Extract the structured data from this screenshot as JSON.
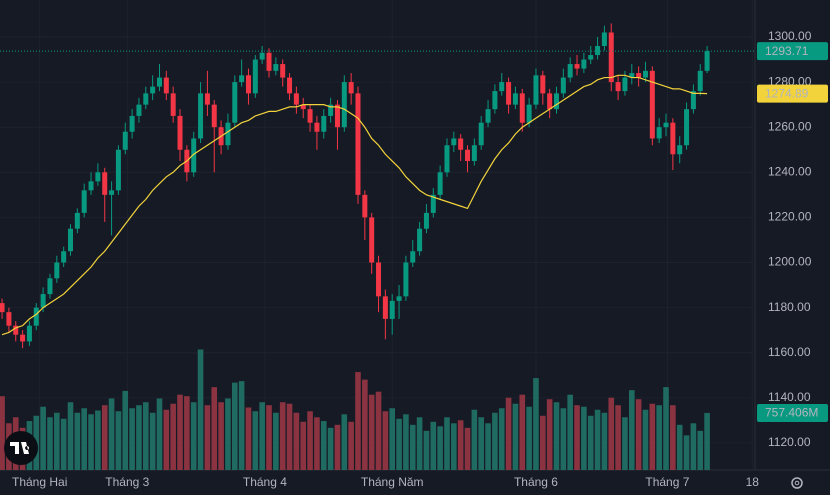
{
  "chart_data": {
    "type": "candlestick",
    "open": [
      1182,
      1178,
      1172,
      1168,
      1165,
      1172,
      1180,
      1186,
      1193,
      1200,
      1205,
      1215,
      1222,
      1232,
      1236,
      1240,
      1230,
      1232,
      1250,
      1258,
      1265,
      1270,
      1275,
      1278,
      1282,
      1275,
      1265,
      1250,
      1240,
      1255,
      1275,
      1270,
      1260,
      1252,
      1262,
      1280,
      1283,
      1275,
      1290,
      1293,
      1285,
      1288,
      1282,
      1275,
      1270,
      1268,
      1262,
      1258,
      1265,
      1270,
      1260,
      1280,
      1275,
      1230,
      1220,
      1200,
      1185,
      1175,
      1183,
      1185,
      1200,
      1205,
      1215,
      1222,
      1230,
      1240,
      1252,
      1255,
      1250,
      1245,
      1252,
      1262,
      1268,
      1276,
      1280,
      1270,
      1275,
      1262,
      1270,
      1283,
      1275,
      1268,
      1275,
      1282,
      1288,
      1286,
      1290,
      1292,
      1296,
      1302,
      1280,
      1276,
      1282,
      1284,
      1282,
      1285,
      1255,
      1260,
      1262,
      1248,
      1252,
      1268,
      1276,
      1285
    ],
    "high": [
      1184,
      1180,
      1174,
      1170,
      1174,
      1182,
      1189,
      1195,
      1203,
      1207,
      1217,
      1224,
      1235,
      1240,
      1244,
      1242,
      1236,
      1252,
      1262,
      1268,
      1273,
      1278,
      1283,
      1288,
      1285,
      1278,
      1268,
      1252,
      1258,
      1280,
      1285,
      1272,
      1263,
      1266,
      1283,
      1290,
      1286,
      1292,
      1296,
      1295,
      1291,
      1290,
      1284,
      1278,
      1273,
      1270,
      1265,
      1268,
      1273,
      1272,
      1283,
      1284,
      1278,
      1232,
      1222,
      1203,
      1188,
      1186,
      1190,
      1203,
      1210,
      1218,
      1226,
      1233,
      1243,
      1255,
      1258,
      1257,
      1252,
      1255,
      1265,
      1272,
      1279,
      1284,
      1282,
      1278,
      1277,
      1273,
      1286,
      1285,
      1277,
      1278,
      1286,
      1291,
      1292,
      1293,
      1296,
      1300,
      1305,
      1306,
      1283,
      1285,
      1288,
      1287,
      1289,
      1287,
      1264,
      1266,
      1264,
      1256,
      1271,
      1279,
      1288,
      1296
    ],
    "low": [
      1175,
      1169,
      1165,
      1162,
      1163,
      1170,
      1178,
      1184,
      1191,
      1198,
      1203,
      1213,
      1220,
      1230,
      1234,
      1218,
      1212,
      1230,
      1248,
      1255,
      1262,
      1268,
      1272,
      1276,
      1272,
      1262,
      1245,
      1236,
      1238,
      1253,
      1265,
      1240,
      1248,
      1250,
      1260,
      1278,
      1270,
      1273,
      1288,
      1282,
      1283,
      1278,
      1272,
      1266,
      1264,
      1258,
      1250,
      1255,
      1262,
      1250,
      1258,
      1270,
      1226,
      1210,
      1195,
      1178,
      1166,
      1168,
      1175,
      1183,
      1198,
      1203,
      1213,
      1220,
      1228,
      1238,
      1249,
      1245,
      1240,
      1243,
      1250,
      1260,
      1266,
      1274,
      1266,
      1268,
      1258,
      1260,
      1268,
      1270,
      1264,
      1266,
      1273,
      1280,
      1283,
      1284,
      1288,
      1290,
      1294,
      1276,
      1272,
      1274,
      1279,
      1278,
      1280,
      1252,
      1253,
      1256,
      1241,
      1244,
      1250,
      1266,
      1274,
      1284
    ],
    "close": [
      1178,
      1172,
      1168,
      1165,
      1172,
      1180,
      1186,
      1193,
      1200,
      1205,
      1215,
      1222,
      1232,
      1236,
      1240,
      1230,
      1232,
      1250,
      1258,
      1265,
      1270,
      1275,
      1278,
      1282,
      1275,
      1265,
      1250,
      1240,
      1255,
      1275,
      1270,
      1260,
      1252,
      1262,
      1280,
      1283,
      1275,
      1290,
      1293,
      1285,
      1288,
      1282,
      1275,
      1270,
      1268,
      1262,
      1258,
      1265,
      1270,
      1260,
      1280,
      1275,
      1230,
      1220,
      1200,
      1185,
      1175,
      1183,
      1185,
      1200,
      1205,
      1215,
      1222,
      1230,
      1240,
      1252,
      1255,
      1250,
      1245,
      1252,
      1262,
      1268,
      1276,
      1280,
      1270,
      1275,
      1262,
      1270,
      1283,
      1275,
      1268,
      1275,
      1282,
      1288,
      1286,
      1290,
      1292,
      1296,
      1302,
      1280,
      1276,
      1282,
      1284,
      1282,
      1285,
      1255,
      1260,
      1262,
      1248,
      1252,
      1268,
      1276,
      1285,
      1293.71
    ],
    "ma": {
      "color": "#f2d33c",
      "values": [
        1168,
        1169,
        1171,
        1172,
        1175,
        1177,
        1180,
        1182,
        1184,
        1186,
        1189,
        1192,
        1195,
        1198,
        1202,
        1205,
        1209,
        1213,
        1217,
        1221,
        1225,
        1228,
        1232,
        1235,
        1238,
        1240,
        1243,
        1245,
        1248,
        1250,
        1252,
        1254,
        1256,
        1258,
        1260,
        1262,
        1263,
        1265,
        1266,
        1267,
        1267,
        1268,
        1269,
        1269,
        1270,
        1270,
        1270,
        1270,
        1269,
        1269,
        1268,
        1266,
        1264,
        1260,
        1255,
        1252,
        1248,
        1245,
        1242,
        1238,
        1235,
        1232,
        1230,
        1229,
        1228,
        1227,
        1226,
        1225,
        1224,
        1230,
        1236,
        1241,
        1246,
        1250,
        1253,
        1257,
        1260,
        1262,
        1264,
        1266,
        1268,
        1270,
        1272,
        1274,
        1276,
        1278,
        1279,
        1281,
        1282,
        1282,
        1283,
        1283,
        1282,
        1282,
        1281,
        1280,
        1279,
        1278,
        1277,
        1277,
        1276,
        1275,
        1275,
        1274.89
      ]
    },
    "volume": {
      "values": [
        980,
        620,
        700,
        560,
        650,
        720,
        840,
        700,
        760,
        680,
        900,
        760,
        820,
        740,
        790,
        860,
        950,
        780,
        1050,
        820,
        860,
        900,
        760,
        950,
        800,
        880,
        1000,
        980,
        900,
        1600,
        860,
        1100,
        900,
        950,
        1160,
        1180,
        830,
        780,
        900,
        860,
        760,
        900,
        880,
        760,
        640,
        780,
        700,
        650,
        560,
        600,
        740,
        640,
        1300,
        1200,
        1000,
        1040,
        780,
        820,
        680,
        740,
        600,
        700,
        520,
        640,
        580,
        700,
        620,
        660,
        560,
        800,
        700,
        620,
        760,
        820,
        960,
        880,
        1000,
        840,
        1220,
        720,
        940,
        900,
        820,
        1000,
        860,
        840,
        720,
        800,
        760,
        960,
        860,
        700,
        1060,
        940,
        800,
        880,
        860,
        1100,
        860,
        600,
        460,
        620,
        520,
        757.406
      ],
      "label": "757.406M"
    },
    "up_color": "#089981",
    "down_color": "#f23645",
    "volume_up_color": "#1f6a61",
    "volume_down_color": "#8b3340",
    "xlim": [
      -0.3,
      110
    ],
    "xticks": [
      {
        "value": 5.5,
        "label": "Tháng Hai"
      },
      {
        "value": 18.3,
        "label": "Tháng 3"
      },
      {
        "value": 38.4,
        "label": "Tháng 4"
      },
      {
        "value": 57,
        "label": "Tháng Năm"
      },
      {
        "value": 78,
        "label": "Tháng 6"
      },
      {
        "value": 97.2,
        "label": "Tháng 7"
      },
      {
        "value": 109.6,
        "label": "18"
      }
    ],
    "ylim": [
      1108,
      1316.4
    ],
    "yticks": [
      {
        "value": 1120,
        "label": "1120.00"
      },
      {
        "value": 1140,
        "label": "1140.00"
      },
      {
        "value": 1160,
        "label": "1160.00"
      },
      {
        "value": 1180,
        "label": "1180.00"
      },
      {
        "value": 1200,
        "label": "1200.00"
      },
      {
        "value": 1220,
        "label": "1220.00"
      },
      {
        "value": 1240,
        "label": "1240.00"
      },
      {
        "value": 1260,
        "label": "1260.00"
      },
      {
        "value": 1280,
        "label": "1280.00"
      },
      {
        "value": 1300,
        "label": "1300.00"
      }
    ],
    "y2lim": [
      0,
      6240
    ],
    "grid": true
  }
}
